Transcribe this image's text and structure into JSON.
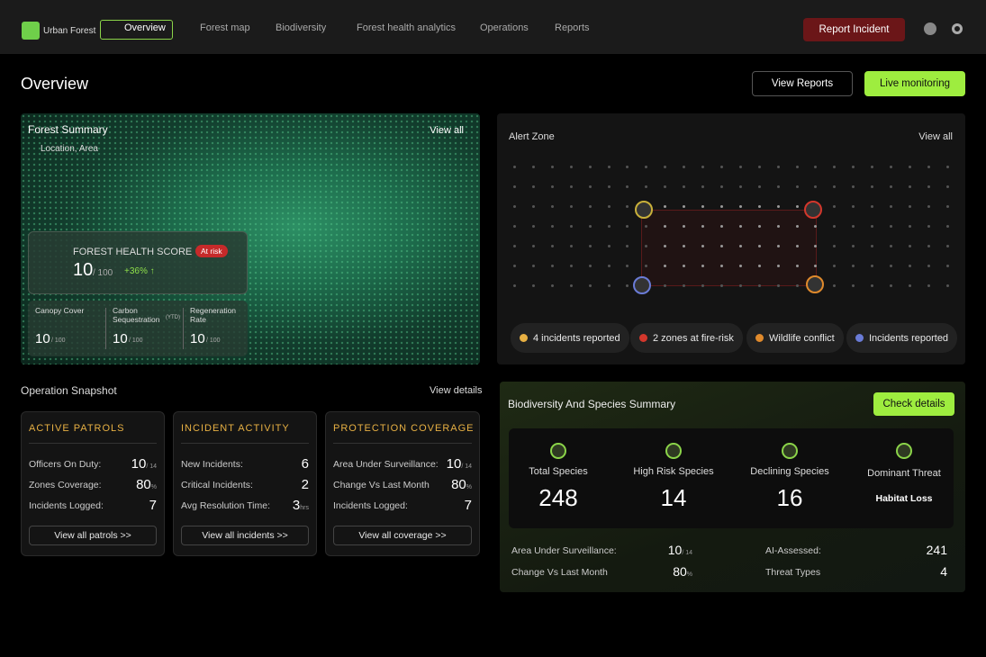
{
  "nav": {
    "brand": "Urban Forest",
    "items": [
      "Overview",
      "Forest map",
      "Biodiversity",
      "Forest health analytics",
      "Operations",
      "Reports"
    ],
    "report_button": "Report Incident"
  },
  "page": {
    "title": "Overview",
    "view_reports": "View Reports",
    "live_monitoring": "Live monitoring"
  },
  "forest_summary": {
    "title": "Forest Summary",
    "view_all": "View all",
    "location": "Location, Area",
    "health": {
      "label": "FOREST HEALTH SCORE",
      "status": "At risk",
      "score": 10,
      "max": "/ 100",
      "change": "+36% ↑"
    },
    "metrics": [
      {
        "label": "Canopy Cover",
        "value": 10,
        "unit": "/ 100"
      },
      {
        "label": "Carbon Sequestration",
        "suffix": "(YTD)",
        "value": 10,
        "unit": "/ 100"
      },
      {
        "label": "Regeneration Rate",
        "value": 10,
        "unit": "/ 100"
      }
    ]
  },
  "alert_zone": {
    "title": "Alert Zone",
    "view_all": "View all",
    "legend": [
      "4 incidents reported",
      "2 zones at fire-risk",
      "Wildlife conflict",
      "Incidents reported"
    ]
  },
  "operation_snapshot": {
    "title": "Operation Snapshot",
    "view_details": "View details",
    "cards": [
      {
        "title": "ACTIVE PATROLS",
        "rows": [
          {
            "label": "Officers On Duty:",
            "value": 10,
            "unit": "/ 14"
          },
          {
            "label": "Zones Coverage:",
            "value": 80,
            "unit": "%"
          },
          {
            "label": "Incidents Logged:",
            "value": 7
          }
        ],
        "button": "View all patrols >>"
      },
      {
        "title": "INCIDENT ACTIVITY",
        "rows": [
          {
            "label": "New Incidents:",
            "value": 6
          },
          {
            "label": "Critical Incidents:",
            "value": 2
          },
          {
            "label": "Avg Resolution Time:",
            "value": 3,
            "unit": "hrs"
          }
        ],
        "button": "View all incidents >>"
      },
      {
        "title": "PROTECTION COVERAGE",
        "rows": [
          {
            "label": "Area Under Surveillance:",
            "value": 10,
            "unit": "/ 14"
          },
          {
            "label": "Change Vs Last Month",
            "value": 80,
            "unit": "%"
          },
          {
            "label": "Incidents Logged:",
            "value": 7
          }
        ],
        "button": "View all coverage >>"
      }
    ]
  },
  "biodiversity": {
    "title": "Biodiversity And Species Summary",
    "check_details": "Check details",
    "stats": [
      {
        "label": "Total Species",
        "value": 248
      },
      {
        "label": "High Risk Species",
        "value": 14
      },
      {
        "label": "Declining Species",
        "value": 16
      },
      {
        "label": "Dominant Threat",
        "value": "Habitat Loss"
      }
    ],
    "rows": [
      {
        "label": "Area Under Surveillance:",
        "value": 10,
        "unit": "/ 14"
      },
      {
        "label": "AI-Assessed:",
        "value": 241
      },
      {
        "label": "Change Vs Last Month",
        "value": 80,
        "unit": "%"
      },
      {
        "label": "Threat Types",
        "value": 4
      }
    ]
  }
}
